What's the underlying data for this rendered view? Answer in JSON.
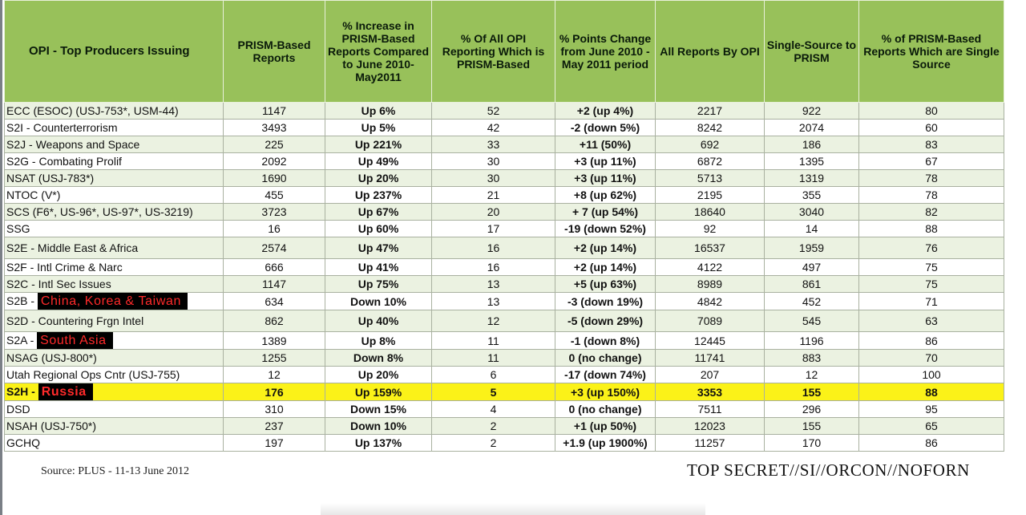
{
  "header": {
    "opi": "OPI - Top Producers Issuing",
    "prism_reports": "PRISM-Based Reports",
    "pct_increase": "% Increase in PRISM-Based Reports Compared to June 2010-May2011",
    "pct_all_opi": "% Of All OPI Reporting Which is PRISM-Based",
    "pct_points": "% Points Change from June 2010 - May 2011 period",
    "all_reports": "All Reports By OPI",
    "single_source": "Single-Source to PRISM",
    "pct_single": "% of PRISM-Based Reports Which are Single Source"
  },
  "rows": [
    {
      "opi": "ECC (ESOC) (USJ-753*, USM-44)",
      "prism": "1147",
      "inc": "Up 6%",
      "pct": "52",
      "pts": "+2 (up 4%)",
      "all": "2217",
      "single": "922",
      "pct_single": "80"
    },
    {
      "opi": "S2I - Counterterrorism",
      "prism": "3493",
      "inc": "Up 5%",
      "pct": "42",
      "pts": "-2 (down 5%)",
      "all": "8242",
      "single": "2074",
      "pct_single": "60"
    },
    {
      "opi": "S2J - Weapons and Space",
      "prism": "225",
      "inc": "Up 221%",
      "pct": "33",
      "pts": "+11 (50%)",
      "all": "692",
      "single": "186",
      "pct_single": "83"
    },
    {
      "opi": "S2G - Combating Prolif",
      "prism": "2092",
      "inc": "Up 49%",
      "pct": "30",
      "pts": "+3 (up 11%)",
      "all": "6872",
      "single": "1395",
      "pct_single": "67"
    },
    {
      "opi": "NSAT (USJ-783*)",
      "prism": "1690",
      "inc": "Up 20%",
      "pct": "30",
      "pts": "+3 (up 11%)",
      "all": "5713",
      "single": "1319",
      "pct_single": "78"
    },
    {
      "opi": "NTOC (V*)",
      "prism": "455",
      "inc": "Up 237%",
      "pct": "21",
      "pts": "+8 (up 62%)",
      "all": "2195",
      "single": "355",
      "pct_single": "78"
    },
    {
      "opi": "SCS (F6*, US-96*, US-97*, US-3219)",
      "prism": "3723",
      "inc": "Up 67%",
      "pct": "20",
      "pts": "+ 7 (up 54%)",
      "all": "18640",
      "single": "3040",
      "pct_single": "82"
    },
    {
      "opi": "SSG",
      "prism": "16",
      "inc": "Up 60%",
      "pct": "17",
      "pts": "-19 (down 52%)",
      "all": "92",
      "single": "14",
      "pct_single": "88"
    },
    {
      "opi": "S2E - Middle East & Africa",
      "prism": "2574",
      "inc": "Up 47%",
      "pct": "16",
      "pts": "+2 (up 14%)",
      "all": "16537",
      "single": "1959",
      "pct_single": "76"
    },
    {
      "opi": "S2F - Intl Crime & Narc",
      "prism": "666",
      "inc": "Up 41%",
      "pct": "16",
      "pts": "+2 (up 14%)",
      "all": "4122",
      "single": "497",
      "pct_single": "75"
    },
    {
      "opi": "S2C - Intl Sec Issues",
      "prism": "1147",
      "inc": "Up 75%",
      "pct": "13",
      "pts": "+5 (up 63%)",
      "all": "8989",
      "single": "861",
      "pct_single": "75"
    },
    {
      "opi": "S2B -",
      "opi_redacted": "China, Korea & Taiwan",
      "prism": "634",
      "inc": "Down 10%",
      "pct": "13",
      "pts": "-3 (down 19%)",
      "all": "4842",
      "single": "452",
      "pct_single": "71"
    },
    {
      "opi": "S2D - Countering Frgn Intel",
      "prism": "862",
      "inc": "Up 40%",
      "pct": "12",
      "pts": "-5 (down 29%)",
      "all": "7089",
      "single": "545",
      "pct_single": "63"
    },
    {
      "opi": "S2A -",
      "opi_redacted": "South Asia",
      "prism": "1389",
      "inc": "Up 8%",
      "pct": "11",
      "pts": "-1 (down 8%)",
      "all": "12445",
      "single": "1196",
      "pct_single": "86"
    },
    {
      "opi": "NSAG (USJ-800*)",
      "prism": "1255",
      "inc": "Down 8%",
      "pct": "11",
      "pts": "0 (no change)",
      "all": "11741",
      "single": "883",
      "pct_single": "70"
    },
    {
      "opi": "Utah Regional Ops Cntr (USJ-755)",
      "prism": "12",
      "inc": "Up 20%",
      "pct": "6",
      "pts": "-17 (down 74%)",
      "all": "207",
      "single": "12",
      "pct_single": "100"
    },
    {
      "opi": "S2H -",
      "opi_redacted": "Russia",
      "prism": "176",
      "inc": "Up 159%",
      "pct": "5",
      "pts": "+3 (up 150%)",
      "all": "3353",
      "single": "155",
      "pct_single": "88"
    },
    {
      "opi": "DSD",
      "prism": "310",
      "inc": "Down 15%",
      "pct": "4",
      "pts": "0 (no change)",
      "all": "7511",
      "single": "296",
      "pct_single": "95"
    },
    {
      "opi": "NSAH (USJ-750*)",
      "prism": "237",
      "inc": "Down 10%",
      "pct": "2",
      "pts": "+1 (up 50%)",
      "all": "12023",
      "single": "155",
      "pct_single": "65"
    },
    {
      "opi": "GCHQ",
      "prism": "197",
      "inc": "Up 137%",
      "pct": "2",
      "pts": "+1.9 (up 1900%)",
      "all": "11257",
      "single": "170",
      "pct_single": "86"
    }
  ],
  "footer": {
    "source": "Source: PLUS - 11-13 June 2012",
    "classification": "TOP SECRET//SI//ORCON//NOFORN"
  },
  "colors": {
    "header_green": "#98c15a",
    "row_band": "#ebf2e1",
    "highlight_yellow": "#fbf218",
    "redaction_bg": "#000000",
    "redaction_text": "#ff2a2a"
  }
}
